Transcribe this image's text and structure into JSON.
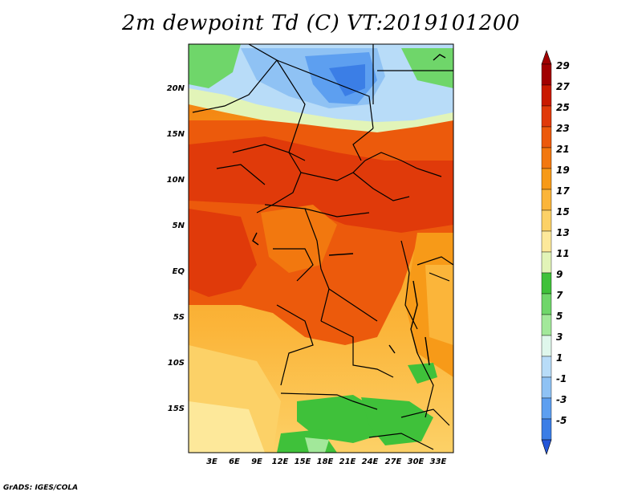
{
  "title": "2m dewpoint Td (C) VT:2019101200",
  "credit": "GrADS: IGES/COLA",
  "map": {
    "lat_labels": [
      "20N",
      "15N",
      "10N",
      "5N",
      "EQ",
      "5S",
      "10S",
      "15S"
    ],
    "lon_labels": [
      "3E",
      "6E",
      "9E",
      "12E",
      "15E",
      "18E",
      "21E",
      "24E",
      "27E",
      "30E",
      "33E"
    ]
  },
  "colorbar": {
    "levels": [
      "29",
      "27",
      "25",
      "23",
      "21",
      "19",
      "17",
      "15",
      "13",
      "11",
      "9",
      "7",
      "5",
      "3",
      "1",
      "-1",
      "-3",
      "-5"
    ],
    "colors": [
      "#a10000",
      "#c91a00",
      "#e03a0a",
      "#ec5a0c",
      "#f2780f",
      "#f79a18",
      "#fbb53a",
      "#fcd167",
      "#fde89a",
      "#e2f4b8",
      "#3fc13a",
      "#6fd66a",
      "#a2e89a",
      "#dff7ec",
      "#b8dcf8",
      "#8fc2f4",
      "#5d9ff0",
      "#3b7ee6",
      "#2456d8"
    ],
    "top_arrow_color": "#a10000",
    "bottom_arrow_color": "#2456d8"
  }
}
